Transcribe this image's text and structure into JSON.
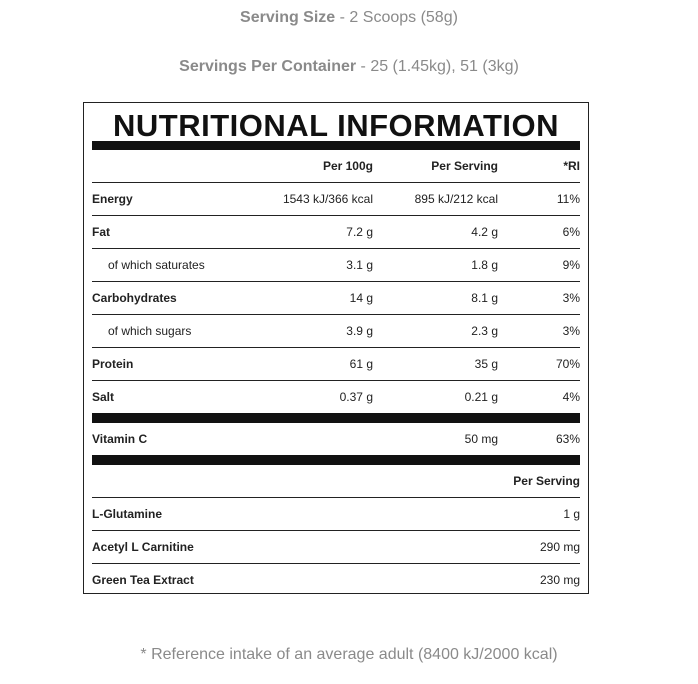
{
  "serving_size": {
    "label": "Serving Size",
    "value": " - 2 Scoops (58g)"
  },
  "servings_per_container": {
    "label": "Servings Per Container",
    "value": " - 25 (1.45kg), 51 (3kg)"
  },
  "panel": {
    "title": "NUTRITIONAL INFORMATION",
    "columns": {
      "per100g": "Per 100g",
      "per_serving": "Per Serving",
      "ri": "*RI"
    },
    "rows": [
      {
        "name": "Energy",
        "per100g": "1543 kJ/366 kcal",
        "per_serving": "895 kJ/212 kcal",
        "ri": "11%"
      },
      {
        "name": "Fat",
        "per100g": "7.2 g",
        "per_serving": "4.2 g",
        "ri": "6%"
      },
      {
        "name": "of which saturates",
        "per100g": "3.1 g",
        "per_serving": "1.8 g",
        "ri": "9%"
      },
      {
        "name": "Carbohydrates",
        "per100g": "14 g",
        "per_serving": "8.1 g",
        "ri": "3%"
      },
      {
        "name": "of which sugars",
        "per100g": "3.9 g",
        "per_serving": "2.3 g",
        "ri": "3%"
      },
      {
        "name": "Protein",
        "per100g": "61 g",
        "per_serving": "35 g",
        "ri": "70%"
      },
      {
        "name": "Salt",
        "per100g": "0.37 g",
        "per_serving": "0.21 g",
        "ri": "4%"
      }
    ],
    "vitamin": {
      "name": "Vitamin C",
      "per_serving": "50 mg",
      "ri": "63%"
    },
    "extras_header": "Per Serving",
    "extras": [
      {
        "name": "L-Glutamine",
        "per_serving": "1 g"
      },
      {
        "name": "Acetyl L Carnitine",
        "per_serving": "290 mg"
      },
      {
        "name": "Green Tea Extract",
        "per_serving": "230 mg"
      }
    ]
  },
  "footnote": "* Reference intake of an average adult (8400 kJ/2000 kcal)"
}
